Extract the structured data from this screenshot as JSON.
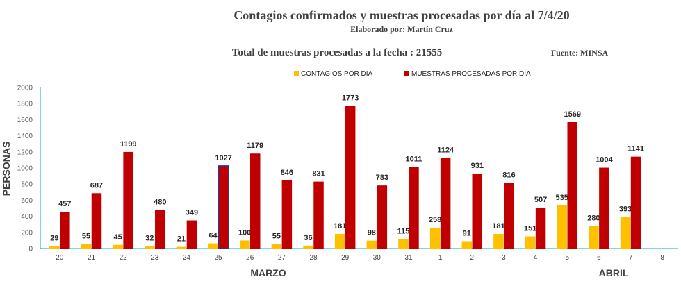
{
  "chart_data": {
    "type": "bar",
    "title": "Contagios confirmados y muestras procesadas por día al 7/4/20",
    "subtitle": "Elaborado por: Martín Cruz",
    "total_text": "Total de muestras procesadas a la fecha : 21555",
    "source_text": "Fuente: MINSA",
    "ylabel": "PERSONAS",
    "ylim": [
      0,
      2000
    ],
    "yticks": [
      0,
      200,
      400,
      600,
      800,
      1000,
      1200,
      1400,
      1600,
      1800,
      2000
    ],
    "categories": [
      "20",
      "21",
      "22",
      "23",
      "24",
      "25",
      "26",
      "27",
      "28",
      "29",
      "30",
      "31",
      "1",
      "2",
      "3",
      "4",
      "5",
      "6",
      "7",
      "8"
    ],
    "month_labels": [
      "MARZO",
      "ABRIL"
    ],
    "legend_position": "top",
    "grid": false,
    "series": [
      {
        "name": "CONTAGIOS POR DIA",
        "color": "#FFC000",
        "values": [
          29,
          55,
          45,
          32,
          21,
          64,
          100,
          55,
          36,
          181,
          98,
          115,
          258,
          91,
          181,
          151,
          535,
          280,
          393,
          null
        ]
      },
      {
        "name": "MUESTRAS PROCESADAS POR DIA",
        "color": "#C00000",
        "values": [
          457,
          687,
          1199,
          480,
          349,
          1027,
          1179,
          846,
          831,
          1773,
          783,
          1011,
          1124,
          931,
          816,
          507,
          1569,
          1004,
          1141,
          null
        ]
      }
    ]
  }
}
